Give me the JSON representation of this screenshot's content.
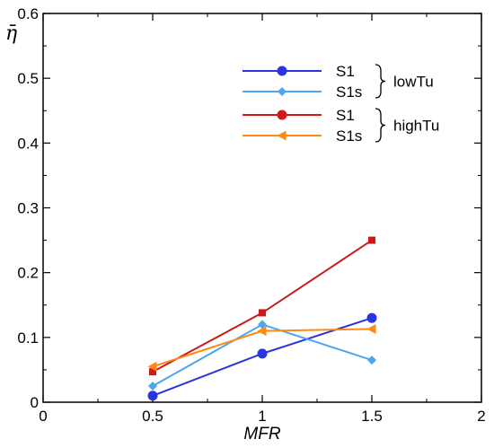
{
  "chart_data": {
    "type": "line",
    "xlabel": "MFR",
    "ylabel": "η̄",
    "xlim": [
      0,
      2
    ],
    "ylim": [
      0,
      0.6
    ],
    "xticks": [
      0,
      0.5,
      1,
      1.5,
      2
    ],
    "xtick_labels": [
      "0",
      "0.5",
      "1",
      "1.5",
      "2"
    ],
    "yticks": [
      0,
      0.1,
      0.2,
      0.3,
      0.4,
      0.5,
      0.6
    ],
    "ytick_labels": [
      "0",
      "0.1",
      "0.2",
      "0.3",
      "0.4",
      "0.5",
      "0.6"
    ],
    "grid": false,
    "legend_position": "top-right",
    "legend_groups": [
      {
        "label": "lowTu",
        "series": [
          0,
          1
        ]
      },
      {
        "label": "highTu",
        "series": [
          2,
          3
        ]
      }
    ],
    "series": [
      {
        "name": "S1",
        "group": "lowTu",
        "color": "#2a35e0",
        "legend_marker": "circle",
        "data_marker": "circle",
        "x": [
          0.5,
          1,
          1.5
        ],
        "y": [
          0.01,
          0.075,
          0.13
        ]
      },
      {
        "name": "S1s",
        "group": "lowTu",
        "color": "#4fa6ec",
        "legend_marker": "diamond",
        "data_marker": "diamond",
        "x": [
          0.5,
          1,
          1.5
        ],
        "y": [
          0.025,
          0.12,
          0.065
        ]
      },
      {
        "name": "S1",
        "group": "highTu",
        "color": "#d01818",
        "legend_marker": "circle",
        "data_marker": "square",
        "x": [
          0.5,
          1,
          1.5
        ],
        "y": [
          0.047,
          0.138,
          0.25
        ]
      },
      {
        "name": "S1s",
        "group": "highTu",
        "color": "#ff8a12",
        "legend_marker": "triangle-left",
        "data_marker": "triangle-left",
        "x": [
          0.5,
          1,
          1.5
        ],
        "y": [
          0.055,
          0.11,
          0.113
        ]
      }
    ]
  }
}
